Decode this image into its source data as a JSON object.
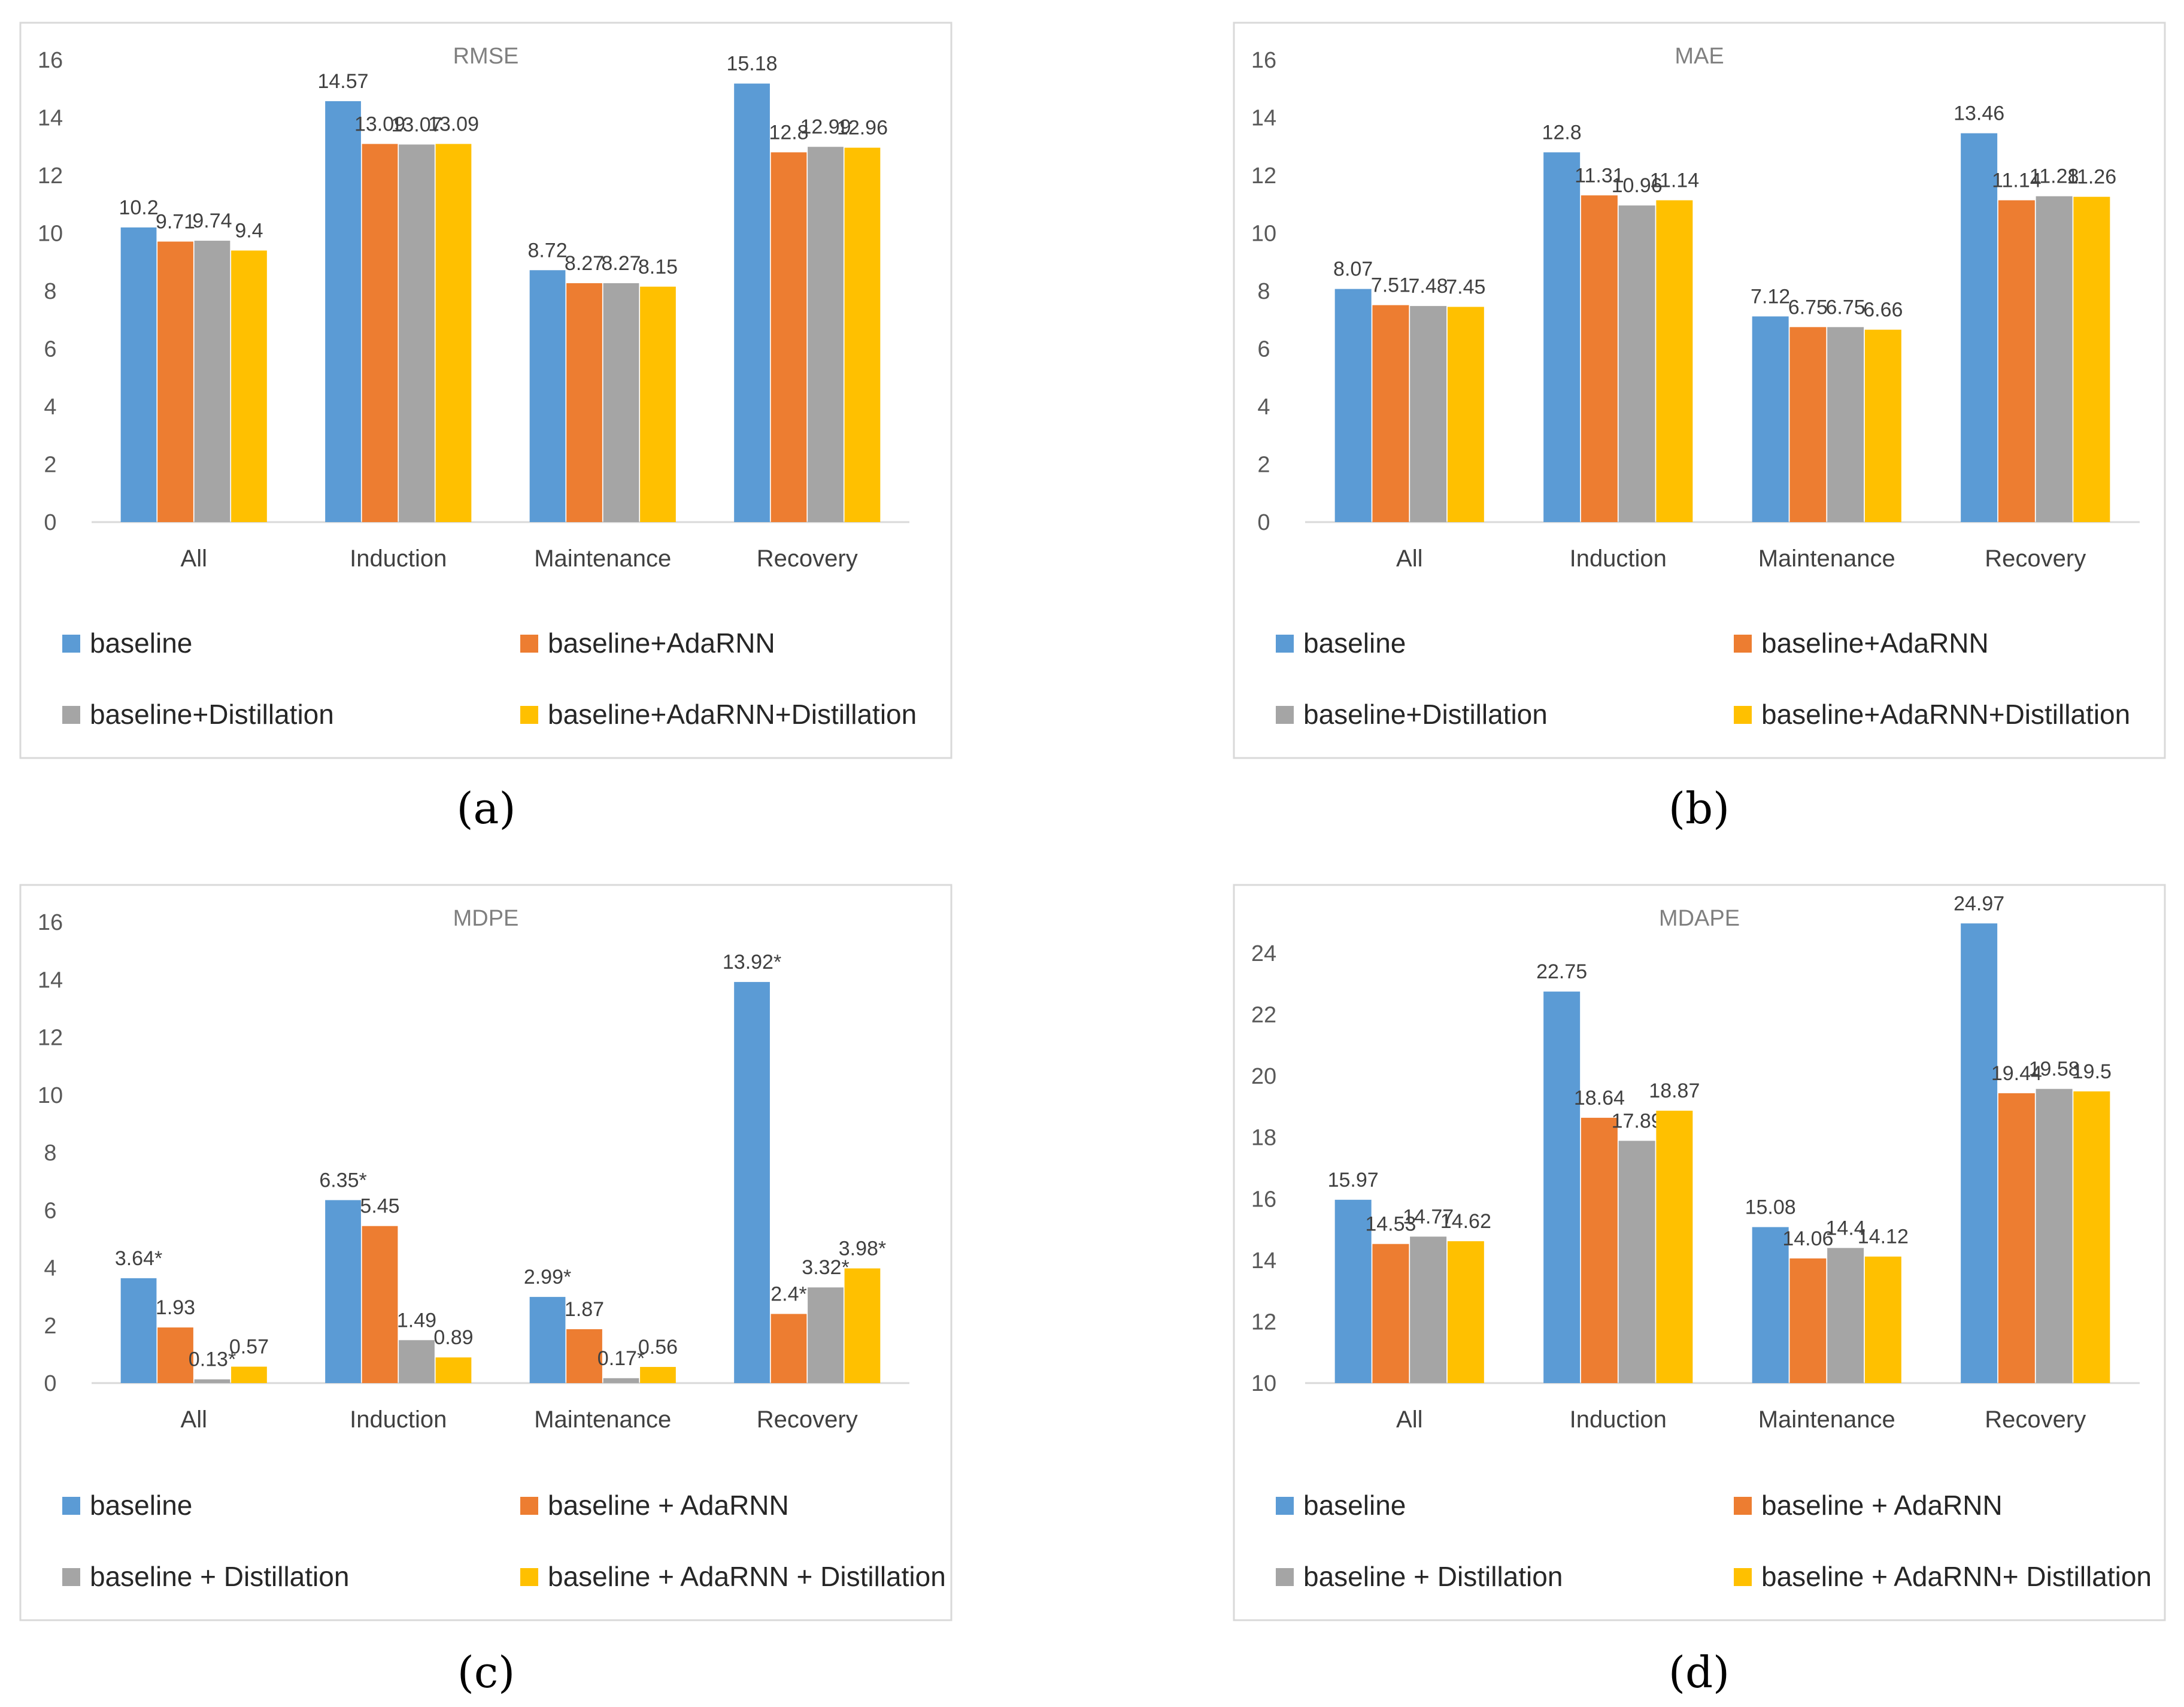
{
  "colors": {
    "baseline": "#5b9bd5",
    "adarnn": "#ed7d31",
    "distillation": "#a5a5a5",
    "combined": "#ffc000",
    "axis": "#d9d9d9",
    "text": "#595959",
    "title": "#7f7f7f",
    "frame": "#d9d9d9"
  },
  "chart_data": [
    {
      "type": "bar",
      "title": "RMSE",
      "caption": "(a)",
      "categories": [
        "All",
        "Induction",
        "Maintenance",
        "Recovery"
      ],
      "yticks": [
        "0",
        "2",
        "4",
        "6",
        "8",
        "10",
        "12",
        "14",
        "16"
      ],
      "ylim": [
        0,
        16
      ],
      "series": [
        {
          "name": "baseline",
          "color_key": "baseline",
          "values": [
            10.2,
            14.57,
            8.72,
            15.18
          ],
          "labels": [
            "10.2",
            "14.57",
            "8.72",
            "15.18"
          ]
        },
        {
          "name": "baseline+AdaRNN",
          "color_key": "adarnn",
          "values": [
            9.71,
            13.09,
            8.27,
            12.8
          ],
          "labels": [
            "9.71",
            "13.09",
            "8.27",
            "12.8"
          ]
        },
        {
          "name": "baseline+Distillation",
          "color_key": "distillation",
          "values": [
            9.74,
            13.07,
            8.27,
            12.99
          ],
          "labels": [
            "9.74",
            "13.07",
            "8.27",
            "12.99"
          ]
        },
        {
          "name": "baseline+AdaRNN+Distillation",
          "color_key": "combined",
          "values": [
            9.4,
            13.09,
            8.15,
            12.96
          ],
          "labels": [
            "9.4",
            "13.09",
            "8.15",
            "12.96"
          ]
        }
      ]
    },
    {
      "type": "bar",
      "title": "MAE",
      "caption": "(b)",
      "categories": [
        "All",
        "Induction",
        "Maintenance",
        "Recovery"
      ],
      "yticks": [
        "0",
        "2",
        "4",
        "6",
        "8",
        "10",
        "12",
        "14",
        "16"
      ],
      "ylim": [
        0,
        16
      ],
      "series": [
        {
          "name": "baseline",
          "color_key": "baseline",
          "values": [
            8.07,
            12.8,
            7.12,
            13.46
          ],
          "labels": [
            "8.07",
            "12.8",
            "7.12",
            "13.46"
          ]
        },
        {
          "name": "baseline+AdaRNN",
          "color_key": "adarnn",
          "values": [
            7.51,
            11.31,
            6.75,
            11.14
          ],
          "labels": [
            "7.51",
            "11.31",
            "6.75",
            "11.14"
          ]
        },
        {
          "name": "baseline+Distillation",
          "color_key": "distillation",
          "values": [
            7.48,
            10.96,
            6.75,
            11.28
          ],
          "labels": [
            "7.48",
            "10.96",
            "6.75",
            "11.28"
          ]
        },
        {
          "name": "baseline+AdaRNN+Distillation",
          "color_key": "combined",
          "values": [
            7.45,
            11.14,
            6.66,
            11.26
          ],
          "labels": [
            "7.45",
            "11.14",
            "6.66",
            "11.26"
          ]
        }
      ]
    },
    {
      "type": "bar",
      "title": "MDPE",
      "caption": "(c)",
      "categories": [
        "All",
        "Induction",
        "Maintenance",
        "Recovery"
      ],
      "yticks": [
        "0",
        "2",
        "4",
        "6",
        "8",
        "10",
        "12",
        "14",
        "16"
      ],
      "ylim": [
        0,
        16
      ],
      "series": [
        {
          "name": "baseline",
          "color_key": "baseline",
          "values": [
            3.64,
            6.35,
            2.99,
            13.92
          ],
          "labels": [
            "3.64*",
            "6.35*",
            "2.99*",
            "13.92*"
          ]
        },
        {
          "name": "baseline + AdaRNN",
          "color_key": "adarnn",
          "values": [
            1.93,
            5.45,
            1.87,
            2.4
          ],
          "labels": [
            "1.93",
            "5.45",
            "1.87",
            "2.4*"
          ]
        },
        {
          "name": "baseline + Distillation",
          "color_key": "distillation",
          "values": [
            0.13,
            1.49,
            0.17,
            3.32
          ],
          "labels": [
            "0.13*",
            "1.49",
            "0.17*",
            "3.32*"
          ]
        },
        {
          "name": "baseline + AdaRNN + Distillation",
          "color_key": "combined",
          "values": [
            0.57,
            0.89,
            0.56,
            3.98
          ],
          "labels": [
            "0.57",
            "0.89",
            "0.56",
            "3.98*"
          ]
        }
      ]
    },
    {
      "type": "bar",
      "title": "MDAPE",
      "caption": "(d)",
      "categories": [
        "All",
        "Induction",
        "Maintenance",
        "Recovery"
      ],
      "yticks": [
        "10",
        "12",
        "14",
        "16",
        "18",
        "20",
        "22",
        "24"
      ],
      "ylim": [
        10,
        25.5
      ],
      "series": [
        {
          "name": "baseline",
          "color_key": "baseline",
          "values": [
            15.97,
            22.75,
            15.08,
            24.97
          ],
          "labels": [
            "15.97",
            "22.75",
            "15.08",
            "24.97"
          ]
        },
        {
          "name": "baseline + AdaRNN",
          "color_key": "adarnn",
          "values": [
            14.53,
            18.64,
            14.06,
            19.44
          ],
          "labels": [
            "14.53",
            "18.64",
            "14.06",
            "19.44"
          ]
        },
        {
          "name": "baseline + Distillation",
          "color_key": "distillation",
          "values": [
            14.77,
            17.89,
            14.4,
            19.58
          ],
          "labels": [
            "14.77",
            "17.89",
            "14.4",
            "19.58"
          ]
        },
        {
          "name": "baseline + AdaRNN+ Distillation",
          "color_key": "combined",
          "values": [
            14.62,
            18.87,
            14.12,
            19.5
          ],
          "labels": [
            "14.62",
            "18.87",
            "14.12",
            "19.5"
          ]
        }
      ]
    }
  ]
}
